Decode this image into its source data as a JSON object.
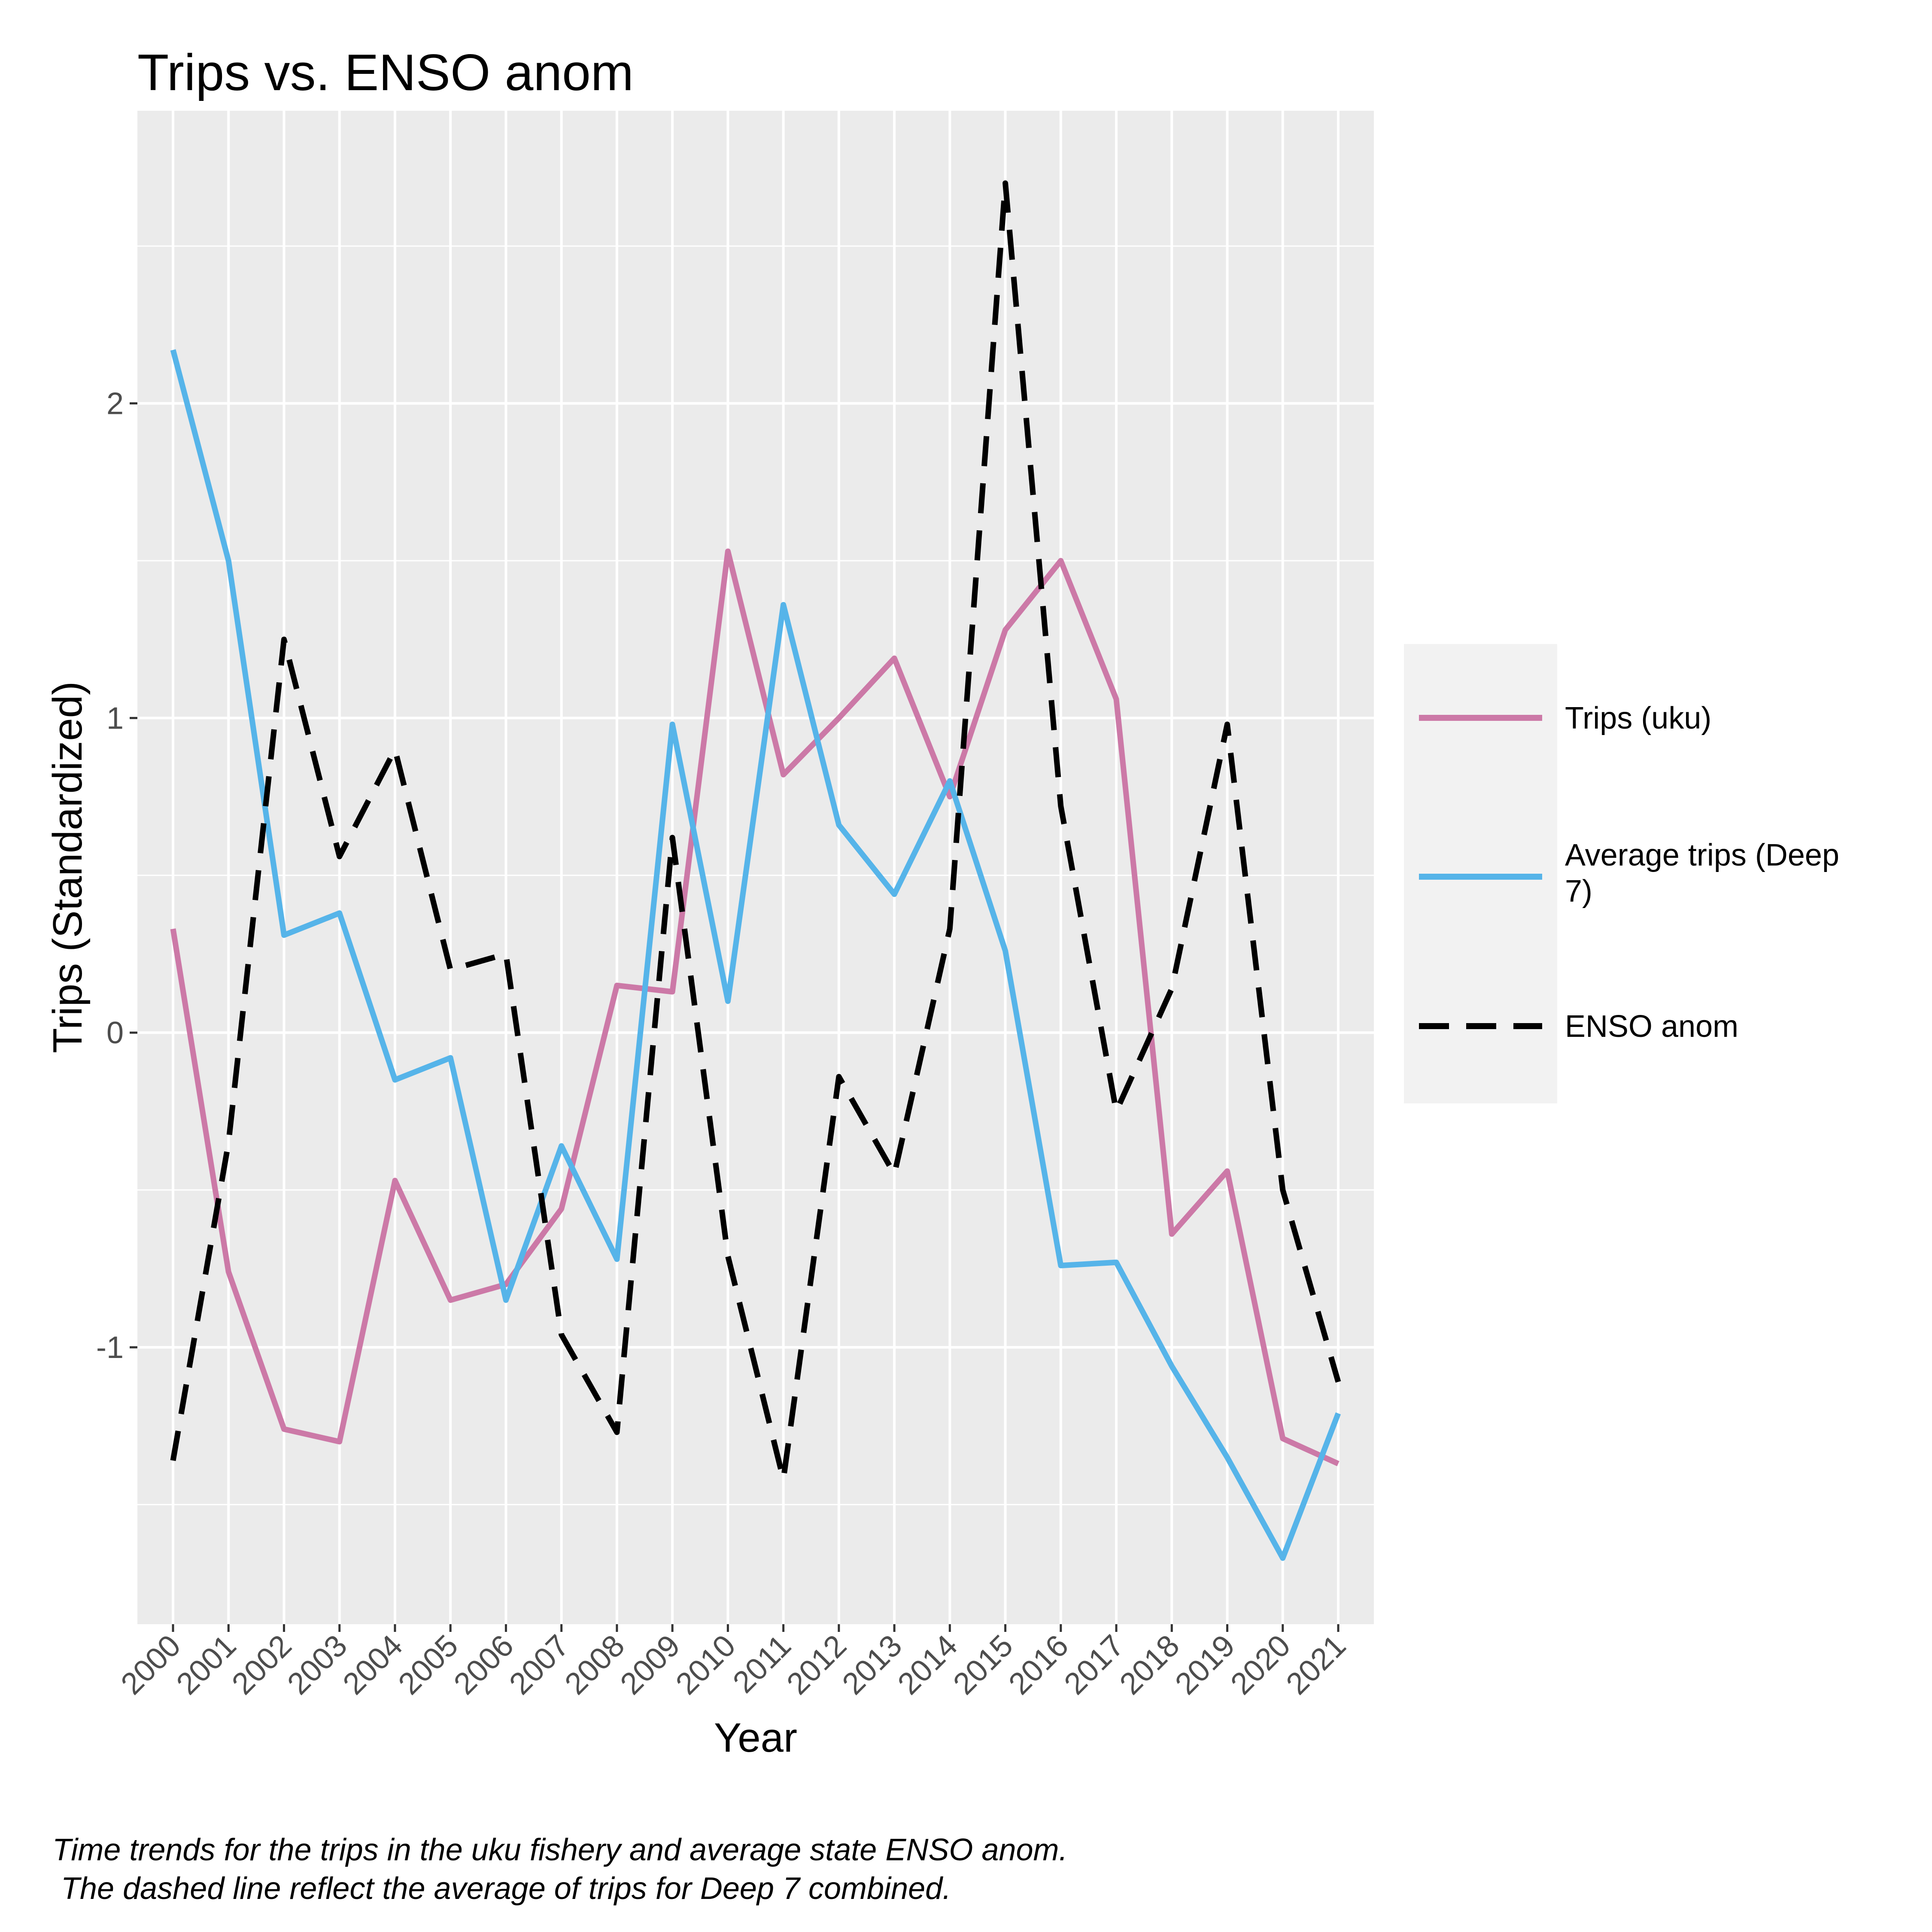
{
  "chart_data": {
    "type": "line",
    "title": "Trips vs. ENSO anom",
    "xlabel": "Year",
    "ylabel": "Trips (Standardized)",
    "categories": [
      "2000",
      "2001",
      "2002",
      "2003",
      "2004",
      "2005",
      "2006",
      "2007",
      "2008",
      "2009",
      "2010",
      "2011",
      "2012",
      "2013",
      "2014",
      "2015",
      "2016",
      "2017",
      "2018",
      "2019",
      "2020",
      "2021"
    ],
    "yticks": [
      "-1",
      "0",
      "1",
      "2"
    ],
    "ytick_values": [
      -1,
      0,
      1,
      2
    ],
    "ylim": [
      -1.88,
      2.93
    ],
    "grid": true,
    "legend_position": "right",
    "series": [
      {
        "name": "Trips (uku)",
        "color": "#CC79A7",
        "dash": "solid",
        "values": [
          0.33,
          -0.76,
          -1.26,
          -1.3,
          -0.47,
          -0.85,
          -0.8,
          -0.56,
          0.15,
          0.13,
          1.53,
          0.82,
          1.0,
          1.19,
          0.75,
          1.28,
          1.5,
          1.06,
          -0.64,
          -0.44,
          -1.29,
          -1.37
        ]
      },
      {
        "name": "Average trips (Deep 7)",
        "color": "#56B4E9",
        "dash": "solid",
        "values": [
          2.17,
          1.5,
          0.31,
          0.38,
          -0.15,
          -0.08,
          -0.85,
          -0.36,
          -0.72,
          0.98,
          0.1,
          1.36,
          0.66,
          0.44,
          0.8,
          0.26,
          -0.74,
          -0.73,
          -1.06,
          -1.35,
          -1.67,
          -1.21
        ]
      },
      {
        "name": "ENSO anom",
        "color": "#000000",
        "dash": "dashed",
        "values": [
          -1.36,
          -0.35,
          1.25,
          0.56,
          0.9,
          0.2,
          0.25,
          -0.96,
          -1.27,
          0.62,
          -0.71,
          -1.42,
          -0.14,
          -0.45,
          0.33,
          2.7,
          0.72,
          -0.25,
          0.14,
          0.98,
          -0.5,
          -1.11
        ]
      }
    ],
    "caption": [
      "Time trends for the trips in the uku fishery and average state ENSO anom.",
      " The dashed line reflect the average of trips for Deep 7 combined."
    ]
  }
}
